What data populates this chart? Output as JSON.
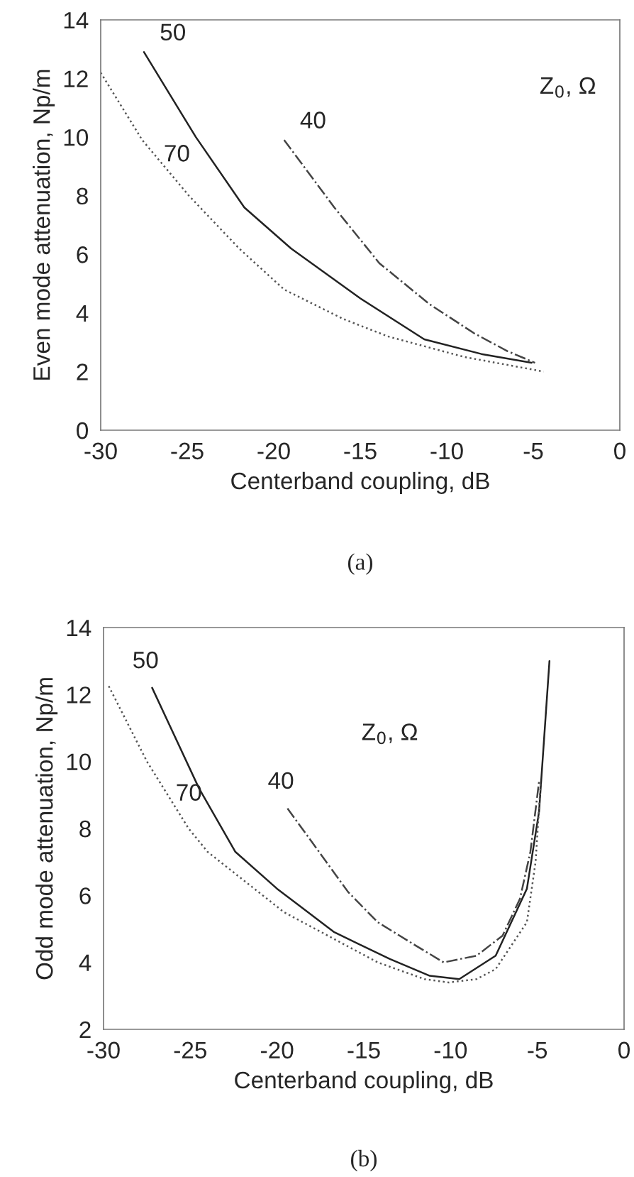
{
  "chart_data": [
    {
      "type": "line",
      "title": "(a)",
      "xlabel": "Centerband coupling, dB",
      "ylabel": "Even mode attenuation, Np/m",
      "xlim": [
        -30,
        0
      ],
      "ylim": [
        0,
        14
      ],
      "xticks": [
        -30,
        -25,
        -20,
        -15,
        -10,
        -5,
        0
      ],
      "yticks": [
        0,
        2,
        4,
        6,
        8,
        10,
        12,
        14
      ],
      "grid": false,
      "annotations": [
        "Z$_{0}$, Ω"
      ],
      "series": [
        {
          "name": "50",
          "color": "#222222",
          "line_style": "solid",
          "x": [
            -27.5,
            -24.5,
            -21.7,
            -19.0,
            -15.0,
            -11.3,
            -8.0,
            -5.1
          ],
          "values": [
            12.9,
            10.0,
            7.6,
            6.2,
            4.5,
            3.1,
            2.6,
            2.3
          ]
        },
        {
          "name": "40",
          "color": "#444444",
          "line_style": "dashdot",
          "x": [
            -19.4,
            -16.5,
            -13.9,
            -11.0,
            -8.4,
            -6.5,
            -4.9
          ],
          "values": [
            9.9,
            7.6,
            5.7,
            4.3,
            3.3,
            2.7,
            2.3
          ]
        },
        {
          "name": "70",
          "color": "#555555",
          "line_style": "dotted",
          "x": [
            -30,
            -27.6,
            -24.9,
            -22.0,
            -19.4,
            -16.0,
            -13.4,
            -9.0,
            -4.4
          ],
          "values": [
            12.2,
            9.9,
            8.0,
            6.2,
            4.8,
            3.8,
            3.2,
            2.5,
            2.0
          ]
        }
      ]
    },
    {
      "type": "line",
      "title": "(b)",
      "xlabel": "Centerband coupling, dB",
      "ylabel": "Odd mode attenuation, Np/m",
      "xlim": [
        -30,
        0
      ],
      "ylim": [
        2,
        14
      ],
      "xticks": [
        -30,
        -25,
        -20,
        -15,
        -10,
        -5,
        0
      ],
      "yticks": [
        2,
        4,
        6,
        8,
        10,
        12,
        14
      ],
      "grid": false,
      "annotations": [
        "Z$_{0}$, Ω"
      ],
      "series": [
        {
          "name": "50",
          "color": "#222222",
          "line_style": "solid",
          "x": [
            -27.2,
            -24.5,
            -22.4,
            -20.0,
            -16.7,
            -13.5,
            -11.2,
            -9.5,
            -7.4,
            -5.6,
            -4.9,
            -4.3
          ],
          "values": [
            12.2,
            9.2,
            7.3,
            6.2,
            4.9,
            4.1,
            3.6,
            3.5,
            4.2,
            6.2,
            8.5,
            13.0
          ]
        },
        {
          "name": "40",
          "color": "#444444",
          "line_style": "dashdot",
          "x": [
            -19.4,
            -15.9,
            -14.2,
            -12.0,
            -10.4,
            -8.5,
            -7.0,
            -6.0,
            -5.4,
            -4.9
          ],
          "values": [
            8.6,
            6.1,
            5.2,
            4.5,
            4.0,
            4.2,
            4.8,
            5.9,
            7.3,
            9.4
          ]
        },
        {
          "name": "70",
          "color": "#555555",
          "line_style": "dotted",
          "x": [
            -29.7,
            -27.5,
            -25.1,
            -24.0,
            -19.6,
            -14.2,
            -11.5,
            -10.1,
            -8.5,
            -7.4,
            -5.6,
            -5.1,
            -4.8
          ],
          "values": [
            12.25,
            10.0,
            8.0,
            7.3,
            5.5,
            4.0,
            3.5,
            3.4,
            3.5,
            3.8,
            5.2,
            7.0,
            9.4
          ]
        }
      ]
    }
  ]
}
